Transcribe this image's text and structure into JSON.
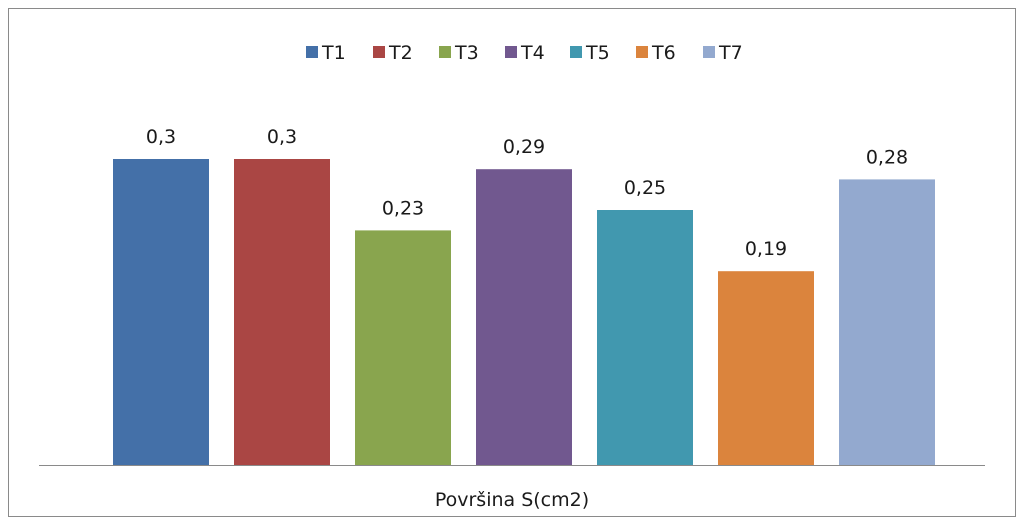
{
  "chart_data": {
    "type": "bar",
    "title": "",
    "xlabel": "Površina S(cm2)",
    "ylabel": "",
    "categories": [
      "Površina S(cm2)"
    ],
    "series": [
      {
        "name": "T1",
        "values": [
          0.3
        ],
        "label": "0,3",
        "color": "#4470A8"
      },
      {
        "name": "T2",
        "values": [
          0.3
        ],
        "label": "0,3",
        "color": "#AA4644"
      },
      {
        "name": "T3",
        "values": [
          0.23
        ],
        "label": "0,23",
        "color": "#89A54E"
      },
      {
        "name": "T4",
        "values": [
          0.29
        ],
        "label": "0,29",
        "color": "#71588F"
      },
      {
        "name": "T5",
        "values": [
          0.25
        ],
        "label": "0,25",
        "color": "#4198AF"
      },
      {
        "name": "T6",
        "values": [
          0.19
        ],
        "label": "0,19",
        "color": "#DB843D"
      },
      {
        "name": "T7",
        "values": [
          0.28
        ],
        "label": "0,28",
        "color": "#93A9CF"
      }
    ],
    "ylim": [
      0,
      0.3
    ],
    "grid": false,
    "legend_position": "top",
    "data_labels": true
  }
}
